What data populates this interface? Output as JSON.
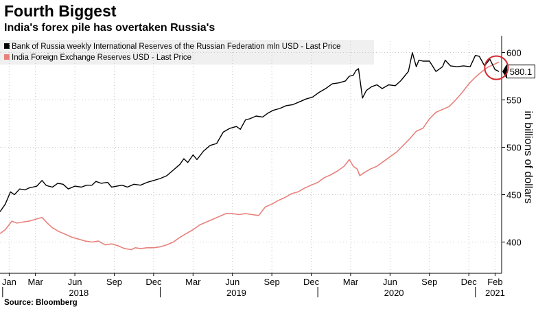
{
  "title": "Fourth Biggest",
  "subtitle": "India's forex pile has overtaken Russia's",
  "source": "Source: Bloomberg",
  "chart_data": {
    "type": "line",
    "ylabel": "in billions of dollars",
    "ylim": [
      367,
      612
    ],
    "yticks": [
      400,
      450,
      500,
      550,
      600
    ],
    "xlim": [
      -0.7,
      37.5
    ],
    "month_labels": [
      {
        "label": "Jan",
        "x": 0
      },
      {
        "label": "Mar",
        "x": 2
      },
      {
        "label": "Jun",
        "x": 5
      },
      {
        "label": "Sep",
        "x": 8
      },
      {
        "label": "Dec",
        "x": 11
      },
      {
        "label": "Mar",
        "x": 14
      },
      {
        "label": "Jun",
        "x": 17
      },
      {
        "label": "Sep",
        "x": 20
      },
      {
        "label": "Dec",
        "x": 23
      },
      {
        "label": "Mar",
        "x": 26
      },
      {
        "label": "Jun",
        "x": 29
      },
      {
        "label": "Sep",
        "x": 32
      },
      {
        "label": "Dec",
        "x": 35
      },
      {
        "label": "Feb",
        "x": 37
      }
    ],
    "year_labels": [
      {
        "label": "2018",
        "x": 5.3
      },
      {
        "label": "2019",
        "x": 17.3
      },
      {
        "label": "2020",
        "x": 29.3
      },
      {
        "label": "2021",
        "x": 37
      }
    ],
    "year_dividers": [
      -0.5,
      11.5,
      23.5,
      35.5
    ],
    "series": [
      {
        "name": "Bank of Russia weekly International Reserves of the Russian Federation mln USD - Last Price",
        "color": "#000000",
        "x": [
          -0.7,
          -0.3,
          0.1,
          0.4,
          0.8,
          1.2,
          1.5,
          1.8,
          2.1,
          2.5,
          2.8,
          3.0,
          3.3,
          3.7,
          4.1,
          4.5,
          5.0,
          5.5,
          5.9,
          6.3,
          6.6,
          7.0,
          7.5,
          7.8,
          8.2,
          8.6,
          9.0,
          9.5,
          10.0,
          10.5,
          11.0,
          11.5,
          12.0,
          12.5,
          13.0,
          13.3,
          13.6,
          14.0,
          14.3,
          14.8,
          15.3,
          15.8,
          16.3,
          16.8,
          17.3,
          17.6,
          18.0,
          18.3,
          18.8,
          19.3,
          19.7,
          20.1,
          20.6,
          21.1,
          21.6,
          22.1,
          22.6,
          23.1,
          23.6,
          24.1,
          24.6,
          25.1,
          25.6,
          25.9,
          26.2,
          26.4,
          26.6,
          26.9,
          27.2,
          27.6,
          28.0,
          28.4,
          28.9,
          29.4,
          29.8,
          30.1,
          30.4,
          30.7,
          31.0,
          31.2,
          31.5,
          32.0,
          32.5,
          33.0,
          33.2,
          33.6,
          34.1,
          34.6,
          35.1,
          35.5,
          35.8,
          36.2,
          36.6,
          37.0,
          37.3
        ],
        "values": [
          432,
          440,
          453,
          450,
          456,
          455,
          457,
          458,
          459,
          465,
          460,
          459,
          458,
          462,
          461,
          456,
          459,
          458,
          460,
          460,
          464,
          462,
          463,
          458,
          459,
          460,
          458,
          461,
          460,
          463,
          465,
          467,
          470,
          476,
          482,
          488,
          484,
          492,
          487,
          496,
          502,
          504,
          516,
          520,
          522,
          519,
          529,
          530,
          533,
          532,
          536,
          539,
          541,
          544,
          545,
          548,
          551,
          553,
          558,
          562,
          567,
          568,
          570,
          575,
          576,
          581,
          583,
          552,
          560,
          564,
          566,
          562,
          566,
          565,
          570,
          575,
          580,
          600,
          585,
          592,
          591,
          591,
          580,
          585,
          592,
          586,
          585,
          586,
          585,
          597,
          596,
          586,
          593,
          582,
          580
        ]
      },
      {
        "name": "India Foreign Exchange Reserves USD - Last Price",
        "color": "#e8817b",
        "x": [
          -0.7,
          -0.3,
          0.2,
          0.6,
          1.0,
          1.5,
          2.0,
          2.5,
          2.9,
          3.3,
          3.8,
          4.3,
          4.8,
          5.3,
          5.8,
          6.3,
          6.8,
          7.3,
          7.8,
          8.3,
          8.8,
          9.3,
          9.6,
          10.0,
          10.5,
          11.0,
          11.5,
          12.0,
          12.5,
          13.0,
          13.5,
          14.0,
          14.5,
          15.0,
          15.5,
          16.0,
          16.5,
          17.0,
          17.5,
          18.0,
          18.5,
          19.0,
          19.5,
          20.0,
          20.5,
          21.0,
          21.5,
          22.0,
          22.5,
          23.0,
          23.5,
          24.0,
          24.5,
          25.0,
          25.5,
          25.9,
          26.2,
          26.5,
          26.7,
          27.0,
          27.5,
          28.0,
          28.5,
          29.0,
          29.5,
          30.0,
          30.5,
          31.0,
          31.5,
          32.0,
          32.5,
          33.0,
          33.5,
          34.0,
          34.5,
          35.0,
          35.5,
          36.0,
          36.5,
          37.0,
          37.3
        ],
        "values": [
          409,
          413,
          422,
          420,
          421,
          422,
          424,
          426,
          420,
          415,
          411,
          408,
          405,
          403,
          401,
          400,
          401,
          397,
          398,
          396,
          393,
          392,
          394,
          393,
          394,
          394,
          395,
          397,
          400,
          405,
          409,
          413,
          418,
          421,
          424,
          427,
          430,
          430,
          429,
          430,
          429,
          428,
          437,
          440,
          444,
          447,
          451,
          453,
          457,
          460,
          463,
          468,
          471,
          475,
          480,
          487,
          480,
          477,
          470,
          473,
          477,
          480,
          485,
          490,
          495,
          502,
          509,
          517,
          520,
          530,
          537,
          540,
          543,
          550,
          558,
          567,
          574,
          580,
          585,
          588,
          590
        ]
      }
    ],
    "last_value": "580.1",
    "highlight": {
      "x": 37.1,
      "value": 584
    }
  }
}
